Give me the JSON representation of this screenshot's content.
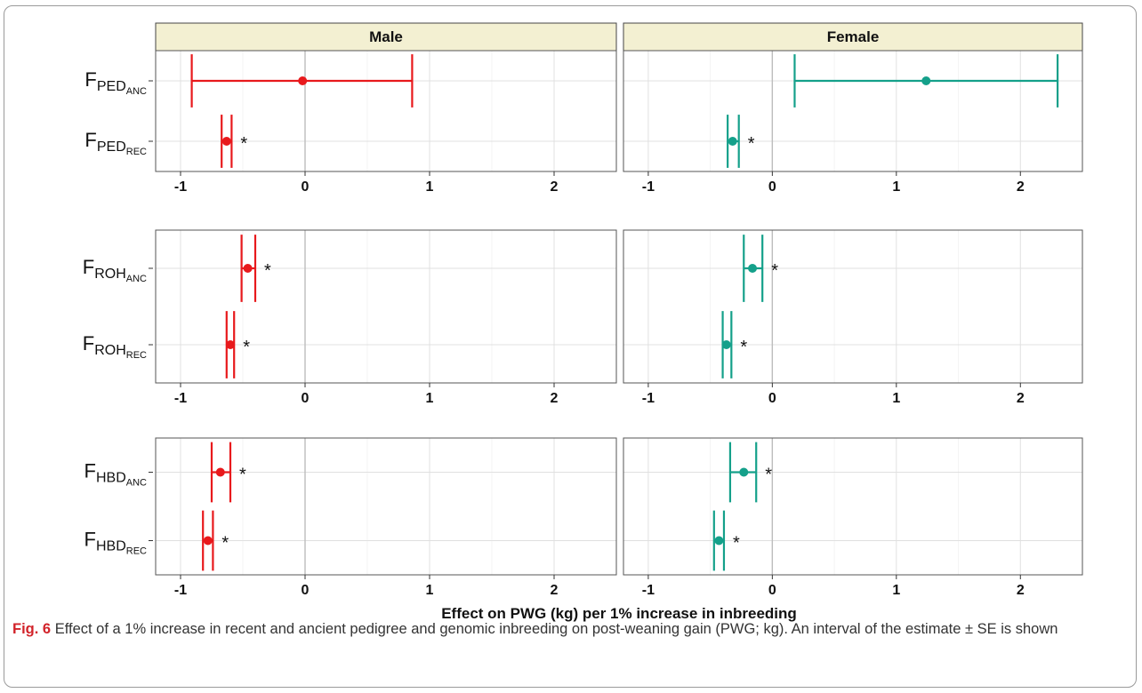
{
  "figure": {
    "x_axis_title": "Effect on PWG (kg) per 1% increase in inbreeding",
    "caption_label": "Fig. 6",
    "caption_text": "Effect of a 1% increase in recent and ancient pedigree and genomic inbreeding on post-weaning gain (PWG; kg). An interval of the estimate ± SE is shown"
  },
  "chart_data": {
    "type": "errorbar",
    "facet_columns": [
      "Male",
      "Female"
    ],
    "colors": {
      "Male": "#e8191c",
      "Female": "#14a08a",
      "strip_fill": "#f3f0d2"
    },
    "xlim": [
      -1.2,
      2.5
    ],
    "x_ticks": [
      -1,
      0,
      1,
      2
    ],
    "significance_marker": "*",
    "grid": true,
    "rows": [
      {
        "measures": [
          {
            "base": "F",
            "sub": "PED",
            "subsub": "ANC"
          },
          {
            "base": "F",
            "sub": "PED",
            "subsub": "REC"
          }
        ],
        "panels": {
          "Male": [
            {
              "estimate": -0.02,
              "lower": -0.91,
              "upper": 0.86,
              "significant": false
            },
            {
              "estimate": -0.63,
              "lower": -0.67,
              "upper": -0.59,
              "significant": true
            }
          ],
          "Female": [
            {
              "estimate": 1.24,
              "lower": 0.18,
              "upper": 2.3,
              "significant": false
            },
            {
              "estimate": -0.32,
              "lower": -0.36,
              "upper": -0.27,
              "significant": true
            }
          ]
        }
      },
      {
        "measures": [
          {
            "base": "F",
            "sub": "ROH",
            "subsub": "ANC"
          },
          {
            "base": "F",
            "sub": "ROH",
            "subsub": "REC"
          }
        ],
        "panels": {
          "Male": [
            {
              "estimate": -0.46,
              "lower": -0.51,
              "upper": -0.4,
              "significant": true
            },
            {
              "estimate": -0.6,
              "lower": -0.63,
              "upper": -0.57,
              "significant": true
            }
          ],
          "Female": [
            {
              "estimate": -0.16,
              "lower": -0.23,
              "upper": -0.08,
              "significant": true
            },
            {
              "estimate": -0.37,
              "lower": -0.4,
              "upper": -0.33,
              "significant": true
            }
          ]
        }
      },
      {
        "measures": [
          {
            "base": "F",
            "sub": "HBD",
            "subsub": "ANC"
          },
          {
            "base": "F",
            "sub": "HBD",
            "subsub": "REC"
          }
        ],
        "panels": {
          "Male": [
            {
              "estimate": -0.68,
              "lower": -0.75,
              "upper": -0.6,
              "significant": true
            },
            {
              "estimate": -0.78,
              "lower": -0.82,
              "upper": -0.74,
              "significant": true
            }
          ],
          "Female": [
            {
              "estimate": -0.23,
              "lower": -0.34,
              "upper": -0.13,
              "significant": true
            },
            {
              "estimate": -0.43,
              "lower": -0.47,
              "upper": -0.39,
              "significant": true
            }
          ]
        }
      }
    ]
  }
}
